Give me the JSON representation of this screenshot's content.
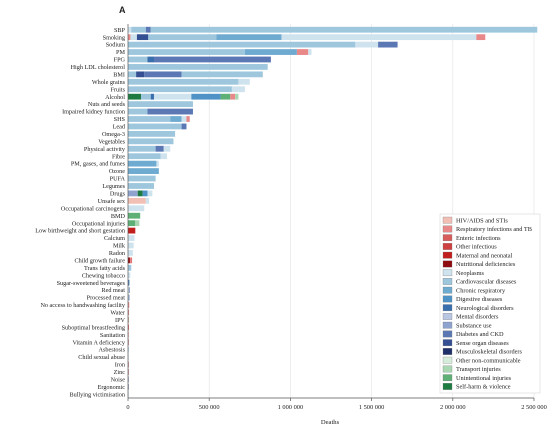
{
  "chart_data": {
    "type": "bar",
    "orientation": "horizontal",
    "stacked": true,
    "panel_label": "A",
    "xlabel": "Deaths",
    "xlim": [
      0,
      2500000
    ],
    "xticks": [
      0,
      500000,
      1000000,
      1500000,
      2000000,
      2500000
    ],
    "xtick_labels": [
      "0",
      "500 000",
      "1 000 000",
      "1 500 000",
      "2 000 000",
      "2 500 000"
    ],
    "categories": [
      "SBP",
      "Smoking",
      "Sodium",
      "PM",
      "FPG",
      "High LDL cholesterol",
      "BMI",
      "Whole grains",
      "Fruits",
      "Alcohol",
      "Nuts and seeds",
      "Impaired kidney function",
      "SHS",
      "Lead",
      "Omega-3",
      "Vegetables",
      "Physical activity",
      "Fibre",
      "PM, gases, and fumes",
      "Ozone",
      "PUFA",
      "Legumes",
      "Drugs",
      "Unsafe sex",
      "Occupational carcinogens",
      "BMD",
      "Occupational injuries",
      "Low birthweight and short gestation",
      "Calcium",
      "Milk",
      "Radon",
      "Child growth failure",
      "Trans fatty acids",
      "Chewing tobacco",
      "Sugar-sweetened beverages",
      "Red meat",
      "Processed meat",
      "No access to handwashing facility",
      "Water",
      "IPV",
      "Suboptimal breastfeeding",
      "Sanitation",
      "Vitamin A deficiency",
      "Asbestosis",
      "Child sexual abuse",
      "Iron",
      "Zinc",
      "Noise",
      "Ergonomic",
      "Bullying victimisation"
    ],
    "values_total": [
      2520000,
      2200000,
      1660000,
      1130000,
      880000,
      860000,
      830000,
      750000,
      720000,
      680000,
      400000,
      400000,
      380000,
      360000,
      290000,
      280000,
      260000,
      240000,
      190000,
      190000,
      170000,
      160000,
      150000,
      130000,
      100000,
      75000,
      70000,
      45000,
      40000,
      35000,
      30000,
      25000,
      20000,
      14000,
      12000,
      10000,
      8000,
      6000,
      5000,
      4000,
      3500,
      3000,
      2500,
      2000,
      1500,
      1200,
      1000,
      800,
      600,
      400
    ],
    "legend_title": "",
    "legend": [
      {
        "name": "HIV/AIDS and STIs",
        "color": "#f2bfb5"
      },
      {
        "name": "Respiratory infections and TB",
        "color": "#e88888"
      },
      {
        "name": "Enteric infections",
        "color": "#d85c5c"
      },
      {
        "name": "Other infectious",
        "color": "#cf4040"
      },
      {
        "name": "Maternal and neonatal",
        "color": "#c11e1e"
      },
      {
        "name": "Nutritional deficiencies",
        "color": "#8e0b10"
      },
      {
        "name": "Neoplasms",
        "color": "#cfe3ef"
      },
      {
        "name": "Cardiovascular diseases",
        "color": "#9ec7de"
      },
      {
        "name": "Chronic respiratory",
        "color": "#6fabd0"
      },
      {
        "name": "Digestive diseases",
        "color": "#4f92c6"
      },
      {
        "name": "Neurological disorders",
        "color": "#3a6fae"
      },
      {
        "name": "Mental disorders",
        "color": "#b9c7e3"
      },
      {
        "name": "Substance use",
        "color": "#8fa3cf"
      },
      {
        "name": "Diabetes and CKD",
        "color": "#5b78b4"
      },
      {
        "name": "Sense organ diseases",
        "color": "#354f93"
      },
      {
        "name": "Musculoskeletal disorders",
        "color": "#1f2f6a"
      },
      {
        "name": "Other non-communicable",
        "color": "#d6ecda"
      },
      {
        "name": "Transport injuries",
        "color": "#a9d7b1"
      },
      {
        "name": "Unintentional injuries",
        "color": "#5fb076"
      },
      {
        "name": "Self-harm & violence",
        "color": "#1d7a41"
      }
    ],
    "segments": [
      [
        [
          "Neoplasms",
          20000
        ],
        [
          "Cardiovascular diseases",
          90000
        ],
        [
          "Diabetes and CKD",
          30000
        ],
        [
          "Cardiovascular diseases",
          2380000
        ]
      ],
      [
        [
          "Respiratory infections and TB",
          15000
        ],
        [
          "Neoplasms",
          40000
        ],
        [
          "Sense organ diseases",
          70000
        ],
        [
          "Cardiovascular diseases",
          420000
        ],
        [
          "Chronic respiratory",
          400000
        ],
        [
          "Neoplasms",
          1200000
        ],
        [
          "Respiratory infections and TB",
          55000
        ]
      ],
      [
        [
          "Cardiovascular diseases",
          1400000
        ],
        [
          "Neoplasms",
          140000
        ],
        [
          "Diabetes and CKD",
          120000
        ]
      ],
      [
        [
          "Cardiovascular diseases",
          720000
        ],
        [
          "Chronic respiratory",
          320000
        ],
        [
          "Respiratory infections and TB",
          70000
        ],
        [
          "Neoplasms",
          20000
        ]
      ],
      [
        [
          "Cardiovascular diseases",
          120000
        ],
        [
          "Neurological disorders",
          40000
        ],
        [
          "Diabetes and CKD",
          720000
        ]
      ],
      [
        [
          "Cardiovascular diseases",
          860000
        ]
      ],
      [
        [
          "Cardiovascular diseases",
          50000
        ],
        [
          "Sense organ diseases",
          50000
        ],
        [
          "Diabetes and CKD",
          230000
        ],
        [
          "Cardiovascular diseases",
          500000
        ]
      ],
      [
        [
          "Cardiovascular diseases",
          680000
        ],
        [
          "Neoplasms",
          70000
        ]
      ],
      [
        [
          "Cardiovascular diseases",
          640000
        ],
        [
          "Neoplasms",
          80000
        ]
      ],
      [
        [
          "Self-harm & violence",
          80000
        ],
        [
          "Cardiovascular diseases",
          60000
        ],
        [
          "Neurological disorders",
          20000
        ],
        [
          "Neoplasms",
          230000
        ],
        [
          "Digestive diseases",
          180000
        ],
        [
          "Unintentional injuries",
          60000
        ],
        [
          "Respiratory infections and TB",
          30000
        ],
        [
          "Transport injuries",
          20000
        ]
      ],
      [
        [
          "Cardiovascular diseases",
          400000
        ]
      ],
      [
        [
          "Cardiovascular diseases",
          120000
        ],
        [
          "Diabetes and CKD",
          280000
        ]
      ],
      [
        [
          "Cardiovascular diseases",
          260000
        ],
        [
          "Chronic respiratory",
          70000
        ],
        [
          "Neoplasms",
          30000
        ],
        [
          "Respiratory infections and TB",
          20000
        ]
      ],
      [
        [
          "Cardiovascular diseases",
          330000
        ],
        [
          "Diabetes and CKD",
          30000
        ]
      ],
      [
        [
          "Cardiovascular diseases",
          290000
        ]
      ],
      [
        [
          "Cardiovascular diseases",
          280000
        ]
      ],
      [
        [
          "Cardiovascular diseases",
          170000
        ],
        [
          "Diabetes and CKD",
          50000
        ],
        [
          "Neoplasms",
          40000
        ]
      ],
      [
        [
          "Cardiovascular diseases",
          200000
        ],
        [
          "Neoplasms",
          40000
        ]
      ],
      [
        [
          "Chronic respiratory",
          175000
        ],
        [
          "Neoplasms",
          15000
        ]
      ],
      [
        [
          "Chronic respiratory",
          190000
        ]
      ],
      [
        [
          "Cardiovascular diseases",
          170000
        ]
      ],
      [
        [
          "Cardiovascular diseases",
          160000
        ]
      ],
      [
        [
          "Substance use",
          60000
        ],
        [
          "Self-harm & violence",
          30000
        ],
        [
          "Digestive diseases",
          30000
        ],
        [
          "Neoplasms",
          30000
        ]
      ],
      [
        [
          "HIV/AIDS and STIs",
          110000
        ],
        [
          "Neoplasms",
          20000
        ]
      ],
      [
        [
          "Neoplasms",
          100000
        ]
      ],
      [
        [
          "Unintentional injuries",
          75000
        ]
      ],
      [
        [
          "Unintentional injuries",
          45000
        ],
        [
          "Transport injuries",
          25000
        ]
      ],
      [
        [
          "Maternal and neonatal",
          45000
        ]
      ],
      [
        [
          "Neoplasms",
          40000
        ]
      ],
      [
        [
          "Neoplasms",
          35000
        ]
      ],
      [
        [
          "Neoplasms",
          30000
        ]
      ],
      [
        [
          "Nutritional deficiencies",
          12000
        ],
        [
          "Respiratory infections and TB",
          8000
        ],
        [
          "Enteric infections",
          5000
        ]
      ],
      [
        [
          "Cardiovascular diseases",
          20000
        ]
      ],
      [
        [
          "Neoplasms",
          14000
        ]
      ],
      [
        [
          "Diabetes and CKD",
          7000
        ],
        [
          "Cardiovascular diseases",
          5000
        ]
      ],
      [
        [
          "Neoplasms",
          6000
        ],
        [
          "Diabetes and CKD",
          4000
        ]
      ],
      [
        [
          "Cardiovascular diseases",
          5000
        ],
        [
          "Diabetes and CKD",
          3000
        ]
      ],
      [
        [
          "Enteric infections",
          4000
        ],
        [
          "Respiratory infections and TB",
          2000
        ]
      ],
      [
        [
          "Enteric infections",
          5000
        ]
      ],
      [
        [
          "Self-harm & violence",
          2500
        ],
        [
          "HIV/AIDS and STIs",
          1500
        ]
      ],
      [
        [
          "Respiratory infections and TB",
          2000
        ],
        [
          "Enteric infections",
          1500
        ]
      ],
      [
        [
          "Enteric infections",
          3000
        ]
      ],
      [
        [
          "Nutritional deficiencies",
          2500
        ]
      ],
      [
        [
          "Chronic respiratory",
          2000
        ]
      ],
      [
        [
          "Mental disorders",
          1500
        ]
      ],
      [
        [
          "Nutritional deficiencies",
          1200
        ]
      ],
      [
        [
          "Nutritional deficiencies",
          1000
        ]
      ],
      [
        [
          "Sense organ diseases",
          800
        ]
      ],
      [
        [
          "Musculoskeletal disorders",
          600
        ]
      ],
      [
        [
          "Mental disorders",
          400
        ]
      ]
    ]
  }
}
